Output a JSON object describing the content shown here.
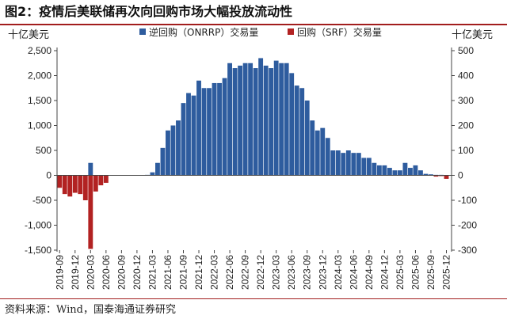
{
  "title": "图2：疫情后美联储再次向回购市场大幅投放流动性",
  "source": "资料来源：Wind，国泰海通证券研究",
  "chart_data": {
    "type": "bar",
    "left_unit": "十亿美元",
    "right_unit": "十亿美元",
    "ylim_left": [
      -1500,
      2500
    ],
    "ylim_right": [
      -300,
      500
    ],
    "left_ticks": [
      "2,500",
      "2,000",
      "1,500",
      "1,000",
      "500",
      "0",
      "-500",
      "-1,000",
      "-1,500"
    ],
    "right_ticks": [
      "500",
      "400",
      "300",
      "200",
      "100",
      "0",
      "-100",
      "-200",
      "-300"
    ],
    "x_ticks": [
      "2019-09",
      "2019-12",
      "2020-03",
      "2020-06",
      "2020-09",
      "2020-12",
      "2021-03",
      "2021-06",
      "2021-09",
      "2021-12",
      "2022-03",
      "2022-06",
      "2022-09",
      "2022-12",
      "2023-03",
      "2023-06",
      "2023-09",
      "2023-12",
      "2024-03",
      "2024-06",
      "2024-09",
      "2024-12",
      "2025-03",
      "2025-06",
      "2025-09",
      "2025-12"
    ],
    "series": [
      {
        "name": "逆回购（ONRRP）交易量",
        "axis": "left",
        "color": "#2e5c9e",
        "x": [
          "2019-09",
          "2019-10",
          "2019-11",
          "2019-12",
          "2020-01",
          "2020-02",
          "2020-03",
          "2020-04",
          "2020-05",
          "2020-06",
          "2020-07",
          "2020-08",
          "2020-09",
          "2020-10",
          "2020-11",
          "2020-12",
          "2021-01",
          "2021-02",
          "2021-03",
          "2021-04",
          "2021-05",
          "2021-06",
          "2021-07",
          "2021-08",
          "2021-09",
          "2021-10",
          "2021-11",
          "2021-12",
          "2022-01",
          "2022-02",
          "2022-03",
          "2022-04",
          "2022-05",
          "2022-06",
          "2022-07",
          "2022-08",
          "2022-09",
          "2022-10",
          "2022-11",
          "2022-12",
          "2023-01",
          "2023-02",
          "2023-03",
          "2023-04",
          "2023-05",
          "2023-06",
          "2023-07",
          "2023-08",
          "2023-09",
          "2023-10",
          "2023-11",
          "2023-12",
          "2024-01",
          "2024-02",
          "2024-03",
          "2024-04",
          "2024-05",
          "2024-06",
          "2024-07",
          "2024-08",
          "2024-09",
          "2024-10",
          "2024-11",
          "2024-12",
          "2025-01",
          "2025-02",
          "2025-03",
          "2025-04",
          "2025-05",
          "2025-06",
          "2025-07",
          "2025-08",
          "2025-09",
          "2025-10",
          "2025-11",
          "2025-12"
        ],
        "values": [
          5,
          5,
          5,
          5,
          5,
          5,
          250,
          5,
          5,
          5,
          5,
          5,
          5,
          5,
          5,
          5,
          5,
          10,
          60,
          250,
          550,
          900,
          1000,
          1100,
          1450,
          1650,
          1600,
          1900,
          1750,
          1750,
          1850,
          1850,
          1950,
          2250,
          2150,
          2200,
          2250,
          2250,
          2150,
          2350,
          2200,
          2150,
          2300,
          2250,
          2250,
          2050,
          1800,
          1750,
          1500,
          1100,
          900,
          950,
          750,
          500,
          500,
          450,
          500,
          450,
          450,
          350,
          350,
          250,
          200,
          200,
          150,
          100,
          100,
          250,
          150,
          200,
          100,
          30,
          20,
          10,
          10,
          5
        ]
      },
      {
        "name": "回购（SRF）交易量",
        "axis": "right",
        "color": "#b22222",
        "x": [
          "2019-09",
          "2019-10",
          "2019-11",
          "2019-12",
          "2020-01",
          "2020-02",
          "2020-03",
          "2020-04",
          "2020-05",
          "2020-06",
          "2025-10",
          "2025-11",
          "2025-12"
        ],
        "values": [
          -50,
          -75,
          -85,
          -70,
          -75,
          -100,
          -295,
          -65,
          -40,
          -30,
          -5,
          -3,
          -14
        ]
      }
    ]
  }
}
